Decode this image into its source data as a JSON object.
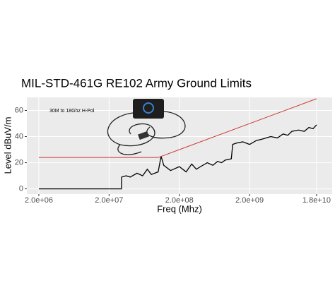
{
  "chart_data": {
    "type": "line",
    "title": "MIL-STD-461G RE102 Army Ground Limits",
    "x_label": "Freq (Mhz)",
    "y_label": "Level dBuV/m",
    "annotation": "30M to 18Ghz H-Pol",
    "xscale": "log",
    "grid": true,
    "xlim": [
      1350000,
      30000000000
    ],
    "ylim": [
      -4,
      70
    ],
    "xticks": [
      {
        "value": 2000000,
        "label": "2.0e+06"
      },
      {
        "value": 20000000,
        "label": "2.0e+07"
      },
      {
        "value": 200000000,
        "label": "2.0e+08"
      },
      {
        "value": 2000000000,
        "label": "2.0e+09"
      },
      {
        "value": 18000000000,
        "label": "1.8e+10"
      }
    ],
    "yticks": [
      0,
      20,
      40,
      60
    ],
    "series": [
      {
        "color": "#000000",
        "x": [
          2000000,
          30000000,
          30100000,
          35000000,
          40000000,
          50000000,
          60000000,
          70000000,
          80000000,
          100000000,
          110000000,
          120000000,
          150000000,
          200000000,
          250000000,
          300000000,
          350000000,
          400000000,
          500000000,
          600000000,
          700000000,
          800000000,
          900000000,
          1100000000,
          1150000000,
          1300000000,
          1600000000,
          2000000000,
          2500000000,
          3000000000,
          4000000000,
          5000000000,
          6000000000,
          7000000000,
          8000000000,
          10000000000,
          12000000000,
          14000000000,
          16000000000,
          18000000000
        ],
        "values": [
          0,
          0,
          9,
          10,
          9,
          12,
          10,
          15,
          11,
          13,
          25,
          18,
          14,
          17,
          13,
          19,
          15,
          17,
          20,
          18,
          21,
          20,
          22,
          23,
          34,
          35,
          36,
          34,
          37,
          38,
          40,
          39,
          42,
          41,
          44,
          45,
          44,
          47,
          46,
          49
        ]
      },
      {
        "color": "#cc3b2e",
        "x": [
          2000000,
          100000000,
          18000000000
        ],
        "values": [
          24,
          24,
          69
        ]
      }
    ]
  }
}
